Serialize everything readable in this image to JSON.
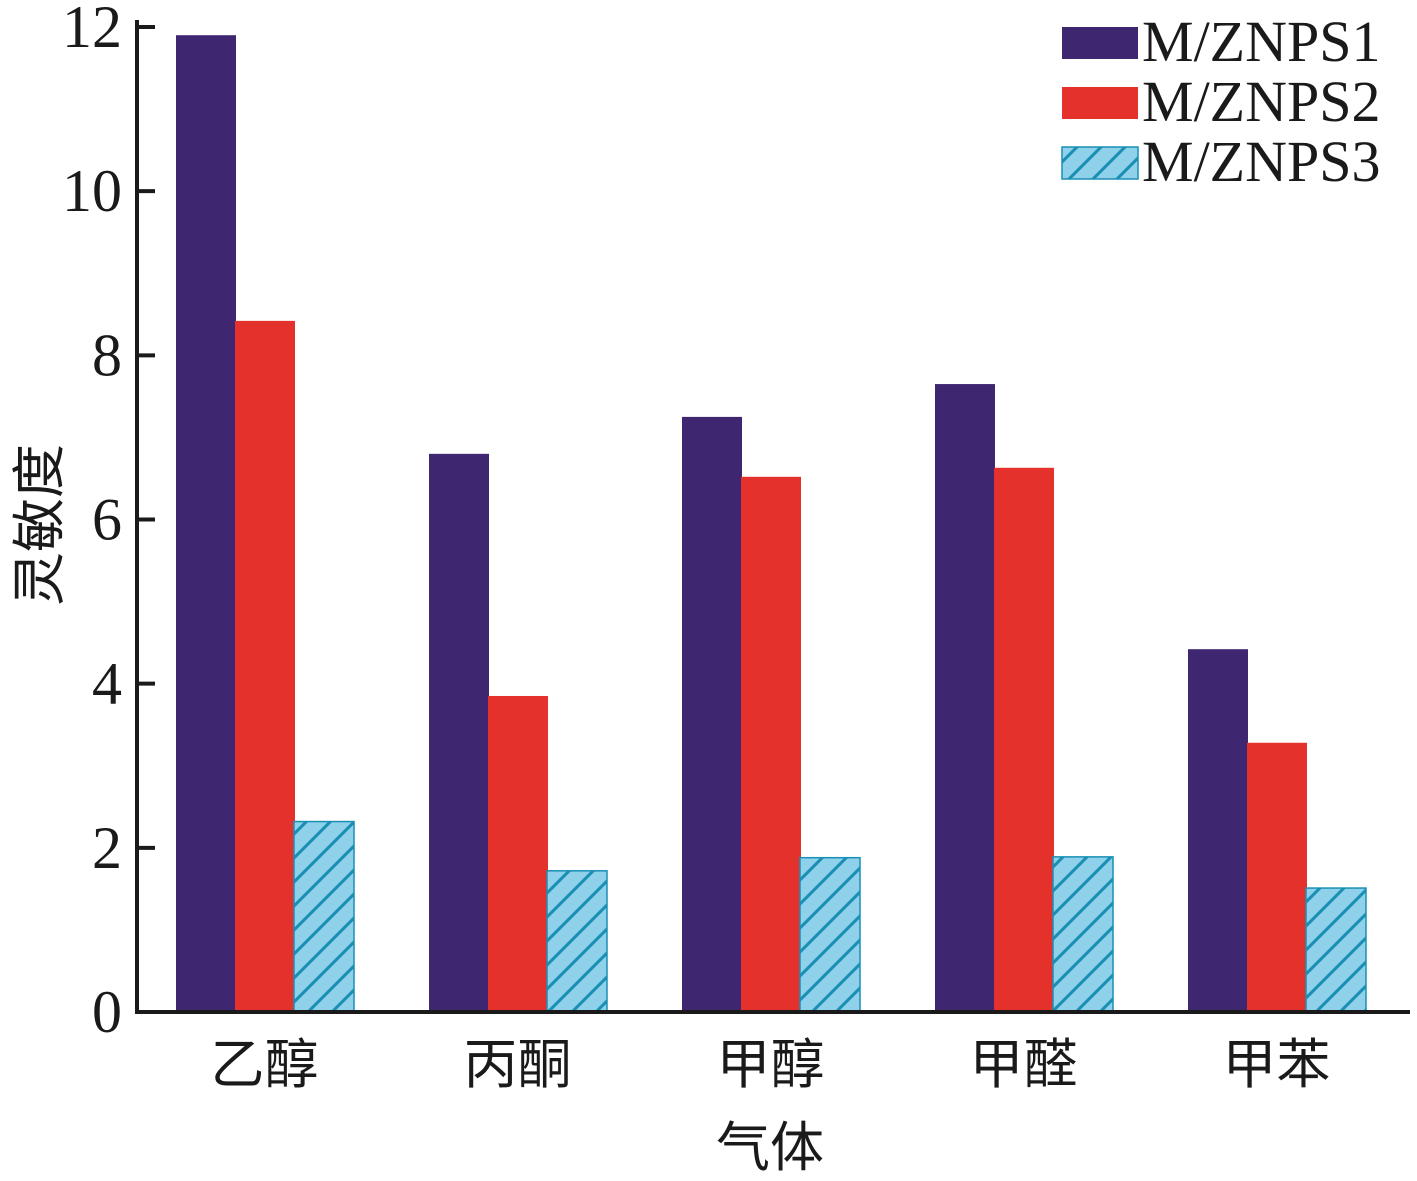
{
  "chart_data": {
    "type": "bar",
    "categories": [
      "乙醇",
      "丙酮",
      "甲醇",
      "甲醛",
      "甲苯"
    ],
    "series": [
      {
        "name": "M/ZNPS1",
        "values": [
          11.9,
          6.8,
          7.25,
          7.65,
          4.42
        ],
        "color": "#3e2670",
        "pattern": "solid"
      },
      {
        "name": "M/ZNPS2",
        "values": [
          8.42,
          3.85,
          6.52,
          6.63,
          3.28
        ],
        "color": "#e5312b",
        "pattern": "solid"
      },
      {
        "name": "M/ZNPS3",
        "values": [
          2.32,
          1.72,
          1.88,
          1.89,
          1.51
        ],
        "color": "#8fd0ea",
        "pattern": "hatch",
        "hatch_color": "#1a8fb4"
      }
    ],
    "xlabel": "气体",
    "ylabel": "灵敏度",
    "ylim": [
      0,
      12
    ],
    "yticks": [
      0,
      2,
      4,
      6,
      8,
      10,
      12
    ],
    "legend_position": "top-right",
    "grid": false
  }
}
